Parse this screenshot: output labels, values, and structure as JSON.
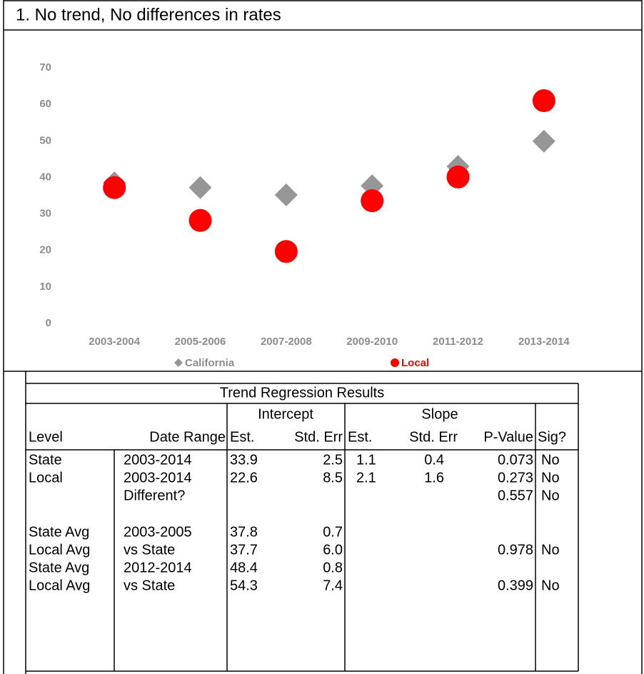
{
  "header": {
    "title": "1. No trend, No differences in rates"
  },
  "chart_data": {
    "type": "scatter",
    "categories": [
      "2003-2004",
      "2005-2006",
      "2007-2008",
      "2009-2010",
      "2011-2012",
      "2013-2014"
    ],
    "series": [
      {
        "name": "California",
        "color": "#969696",
        "marker": "diamond",
        "values": [
          38.5,
          37.2,
          35.2,
          37.7,
          43.0,
          49.9
        ]
      },
      {
        "name": "Local",
        "color": "#ff0000",
        "marker": "circle",
        "values": [
          37.2,
          28.2,
          19.7,
          33.6,
          40.1,
          61.0
        ]
      }
    ],
    "ylim": [
      0,
      70
    ],
    "yticks": [
      0,
      10,
      20,
      30,
      40,
      50,
      60,
      70
    ],
    "grid": false
  },
  "table": {
    "title": "Trend Regression Results",
    "groups": [
      "Intercept",
      "Slope"
    ],
    "columns": [
      "Level",
      "Date Range",
      "Est.",
      "Std. Err",
      "Est.",
      "Std. Err",
      "P-Value",
      "Sig?"
    ],
    "rows": [
      [
        "State",
        "2003-2014",
        "33.9",
        "2.5",
        "1.1",
        "0.4",
        "0.073",
        "No"
      ],
      [
        "Local",
        "2003-2014",
        "22.6",
        "8.5",
        "2.1",
        "1.6",
        "0.273",
        "No"
      ],
      [
        null,
        "Different?",
        null,
        null,
        null,
        null,
        "0.557",
        "No"
      ],
      [
        "State Avg",
        "2003-2005",
        "37.8",
        "0.7",
        null,
        null,
        null,
        null
      ],
      [
        "Local Avg",
        "vs State",
        "37.7",
        "6.0",
        null,
        null,
        "0.978",
        "No"
      ],
      [
        "State Avg",
        "2012-2014",
        "48.4",
        "0.8",
        null,
        null,
        null,
        null
      ],
      [
        "Local Avg",
        "vs State",
        "54.3",
        "7.4",
        null,
        null,
        "0.399",
        "No"
      ]
    ]
  }
}
